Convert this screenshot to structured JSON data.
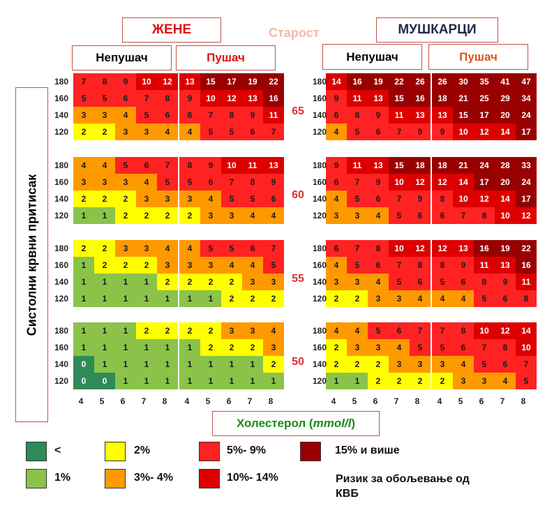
{
  "header": {
    "women": "ЖЕНЕ",
    "age": "Старост",
    "men": "МУШКАРЦИ",
    "nonsmoker": "Непушач",
    "smoker": "Пушач"
  },
  "ylabel": "Систолни крвни притисак",
  "xlabel_main": "Холестерол (",
  "xlabel_unit": "mmol/l",
  "xlabel_close": ")",
  "colors": {
    "dark_green": "#2e8b57",
    "green": "#8bc34a",
    "yellow": "#ffff00",
    "orange": "#ff9900",
    "red": "#ff2222",
    "crimson": "#dd0000",
    "maroon": "#990000"
  },
  "legend": {
    "items": [
      {
        "label": "<",
        "color": "dark_green"
      },
      {
        "label": "2%",
        "color": "yellow"
      },
      {
        "label": "5%- 9%",
        "color": "red"
      },
      {
        "label": "15% и више",
        "color": "maroon"
      },
      {
        "label": "1%",
        "color": "green"
      },
      {
        "label": "3%- 4%",
        "color": "orange"
      },
      {
        "label": "10%- 14%",
        "color": "crimson"
      }
    ],
    "caption_line1": "Ризик за обољевање од",
    "caption_line2": "КВБ"
  },
  "chart_data": {
    "type": "heatmap",
    "x_ticks": [
      "4",
      "5",
      "6",
      "7",
      "8"
    ],
    "y_ticks": [
      "180",
      "160",
      "140",
      "120"
    ],
    "ages": [
      "65",
      "60",
      "55",
      "50"
    ],
    "panels": [
      {
        "sex": "women",
        "smoking": "nonsmoker",
        "rows": [
          [
            [
              7,
              8,
              9,
              10,
              12
            ],
            [
              5,
              5,
              6,
              7,
              8
            ],
            [
              3,
              3,
              4,
              5,
              6
            ],
            [
              2,
              2,
              3,
              3,
              4
            ]
          ],
          [
            [
              4,
              4,
              5,
              6,
              7
            ],
            [
              3,
              3,
              3,
              4,
              5
            ],
            [
              2,
              2,
              2,
              3,
              3
            ],
            [
              1,
              1,
              2,
              2,
              2
            ]
          ],
          [
            [
              2,
              2,
              3,
              3,
              4
            ],
            [
              1,
              2,
              2,
              2,
              3
            ],
            [
              1,
              1,
              1,
              1,
              2
            ],
            [
              1,
              1,
              1,
              1,
              1
            ]
          ],
          [
            [
              1,
              1,
              1,
              2,
              2
            ],
            [
              1,
              1,
              1,
              1,
              1
            ],
            [
              0,
              1,
              1,
              1,
              1
            ],
            [
              0,
              0,
              1,
              1,
              1
            ]
          ]
        ]
      },
      {
        "sex": "women",
        "smoking": "smoker",
        "rows": [
          [
            [
              13,
              15,
              17,
              19,
              22
            ],
            [
              9,
              10,
              12,
              13,
              16
            ],
            [
              6,
              7,
              8,
              9,
              11
            ],
            [
              4,
              5,
              5,
              6,
              7
            ]
          ],
          [
            [
              8,
              9,
              10,
              11,
              13
            ],
            [
              5,
              6,
              7,
              8,
              9
            ],
            [
              3,
              4,
              5,
              5,
              6
            ],
            [
              2,
              3,
              3,
              4,
              4
            ]
          ],
          [
            [
              4,
              5,
              5,
              6,
              7
            ],
            [
              3,
              3,
              4,
              4,
              5
            ],
            [
              2,
              2,
              2,
              3,
              3
            ],
            [
              1,
              1,
              2,
              2,
              2
            ]
          ],
          [
            [
              2,
              2,
              3,
              3,
              4
            ],
            [
              1,
              2,
              2,
              2,
              3
            ],
            [
              1,
              1,
              1,
              1,
              2
            ],
            [
              1,
              1,
              1,
              1,
              1
            ]
          ]
        ]
      },
      {
        "sex": "men",
        "smoking": "nonsmoker",
        "rows": [
          [
            [
              14,
              16,
              19,
              22,
              26
            ],
            [
              9,
              11,
              13,
              15,
              16
            ],
            [
              6,
              8,
              9,
              11,
              13
            ],
            [
              4,
              5,
              6,
              7,
              9
            ]
          ],
          [
            [
              9,
              11,
              13,
              15,
              18
            ],
            [
              6,
              7,
              9,
              10,
              12
            ],
            [
              4,
              5,
              6,
              7,
              9
            ],
            [
              3,
              3,
              4,
              5,
              6
            ]
          ],
          [
            [
              6,
              7,
              8,
              10,
              12
            ],
            [
              4,
              5,
              6,
              7,
              8
            ],
            [
              3,
              3,
              4,
              5,
              6
            ],
            [
              2,
              2,
              3,
              3,
              4
            ]
          ],
          [
            [
              4,
              4,
              5,
              6,
              7
            ],
            [
              2,
              3,
              3,
              4,
              5
            ],
            [
              2,
              2,
              2,
              3,
              3
            ],
            [
              1,
              1,
              2,
              2,
              2
            ]
          ]
        ]
      },
      {
        "sex": "men",
        "smoking": "smoker",
        "rows": [
          [
            [
              26,
              30,
              35,
              41,
              47
            ],
            [
              18,
              21,
              25,
              29,
              34
            ],
            [
              13,
              15,
              17,
              20,
              24
            ],
            [
              9,
              10,
              12,
              14,
              17
            ]
          ],
          [
            [
              18,
              21,
              24,
              28,
              33
            ],
            [
              12,
              14,
              17,
              20,
              24
            ],
            [
              8,
              10,
              12,
              14,
              17
            ],
            [
              6,
              7,
              8,
              10,
              12
            ]
          ],
          [
            [
              12,
              13,
              16,
              19,
              22
            ],
            [
              8,
              9,
              11,
              13,
              16
            ],
            [
              5,
              6,
              8,
              9,
              11
            ],
            [
              4,
              4,
              5,
              6,
              8
            ]
          ],
          [
            [
              7,
              8,
              10,
              12,
              14
            ],
            [
              5,
              6,
              7,
              8,
              10
            ],
            [
              3,
              4,
              5,
              6,
              7
            ],
            [
              2,
              3,
              3,
              4,
              5
            ]
          ]
        ]
      }
    ]
  }
}
